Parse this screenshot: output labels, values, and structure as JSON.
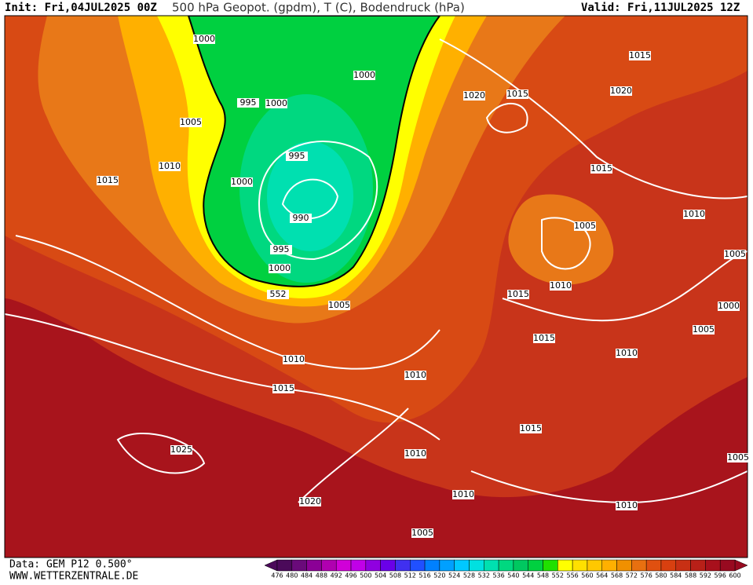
{
  "header": {
    "init": "Init: Fri,04JUL2025 00Z",
    "title": "500 hPa Geopot. (gpdm), T (C), Bodendruck (hPa)",
    "valid": "Valid: Fri,11JUL2025 12Z"
  },
  "map": {
    "contour_labels": [
      "1000",
      "995",
      "1000",
      "1000",
      "1005",
      "1010",
      "1015",
      "995",
      "1000",
      "990",
      "995",
      "1000",
      "552",
      "1005",
      "1010",
      "1015",
      "1020",
      "1015",
      "1015",
      "1020",
      "1015",
      "1010",
      "1005",
      "1010",
      "1005",
      "1015",
      "1000",
      "1005",
      "1015",
      "1010",
      "1010",
      "1015",
      "1010",
      "1025",
      "1005",
      "1010",
      "1010",
      "1020",
      "1005"
    ]
  },
  "colorbar": {
    "ticks": [
      476,
      480,
      484,
      488,
      492,
      496,
      500,
      504,
      508,
      512,
      516,
      520,
      524,
      528,
      532,
      536,
      540,
      544,
      548,
      552,
      556,
      560,
      564,
      568,
      572,
      576,
      580,
      584,
      588,
      592,
      596,
      600
    ],
    "colors": [
      "#4b0a5a",
      "#6a0a7a",
      "#8b0096",
      "#b000b0",
      "#d000d8",
      "#c000e8",
      "#9000e0",
      "#6a00e8",
      "#4030f0",
      "#2050ff",
      "#0080ff",
      "#00a0ff",
      "#00c8ff",
      "#00e0e0",
      "#00e0b0",
      "#00d880",
      "#00c860",
      "#00d040",
      "#20e000",
      "#ffff00",
      "#ffe000",
      "#ffc800",
      "#ffb000",
      "#f09000",
      "#e87010",
      "#e05010",
      "#d84010",
      "#c83014",
      "#b82018",
      "#a8101c",
      "#980a20"
    ]
  },
  "footer": {
    "source": "Data: GEM P12 0.500°",
    "site": "WWW.WETTERZENTRALE.DE"
  }
}
